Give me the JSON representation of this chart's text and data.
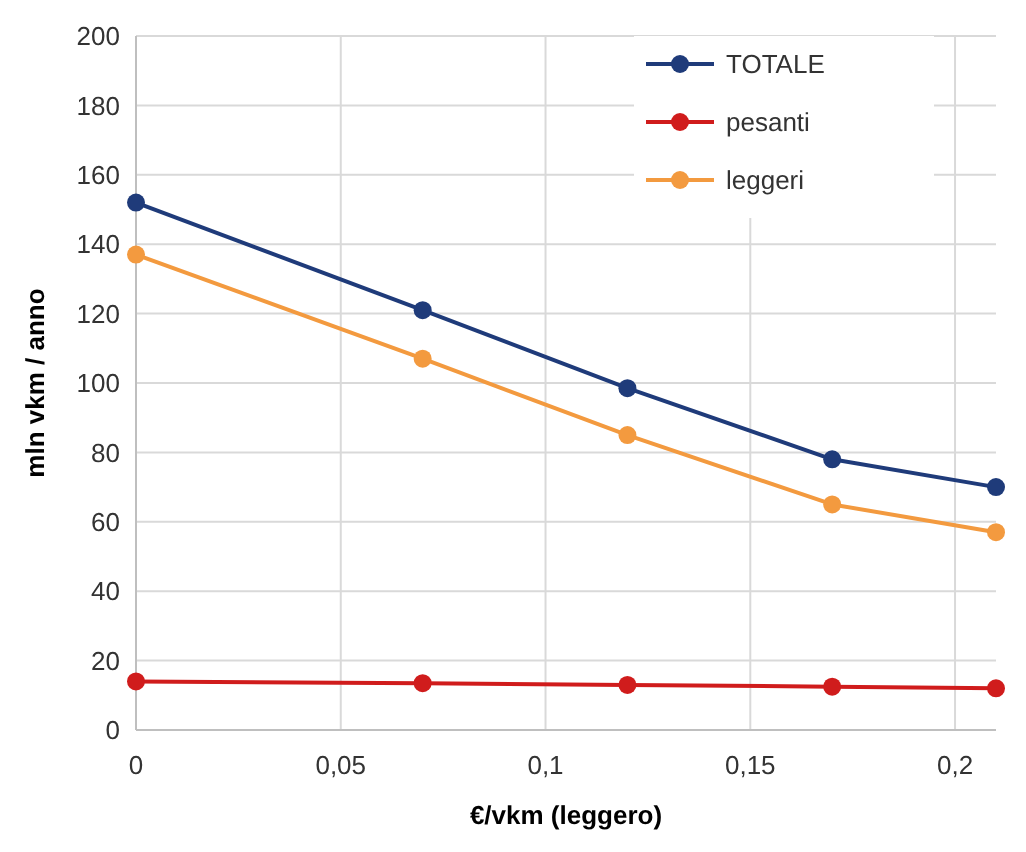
{
  "chart_data": {
    "type": "line",
    "xlabel": "€/vkm (leggero)",
    "ylabel": "mln vkm / anno",
    "x": [
      0,
      0.07,
      0.12,
      0.17,
      0.21
    ],
    "series": [
      {
        "name": "TOTALE",
        "color": "#1f3b7a",
        "values": [
          152,
          121,
          98.5,
          78,
          70
        ]
      },
      {
        "name": "pesanti",
        "color": "#d01c1c",
        "values": [
          14,
          13.5,
          13,
          12.5,
          12
        ]
      },
      {
        "name": "leggeri",
        "color": "#f39a3f",
        "values": [
          137,
          107,
          85,
          65,
          57
        ]
      }
    ],
    "xlim": [
      0,
      0.21
    ],
    "xticks": [
      0,
      {
        "value": 0.05,
        "label": "0,05"
      },
      {
        "value": 0.1,
        "label": "0,1"
      },
      {
        "value": 0.15,
        "label": "0,15"
      },
      {
        "value": 0.2,
        "label": "0,2"
      }
    ],
    "ylim": [
      0,
      200
    ],
    "yticks": [
      0,
      20,
      40,
      60,
      80,
      100,
      120,
      140,
      160,
      180,
      200
    ],
    "grid": true,
    "legend": "top right",
    "marker": "circle",
    "line_style": "solid"
  }
}
